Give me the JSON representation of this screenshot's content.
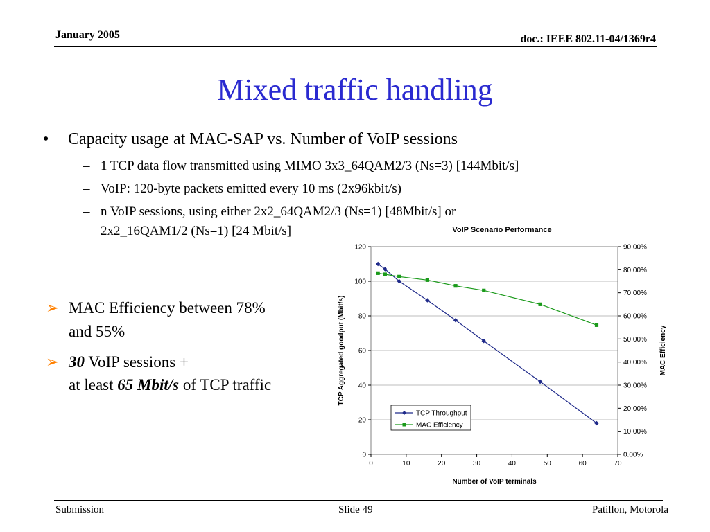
{
  "header": {
    "date": "January 2005",
    "doc": "doc.: IEEE 802.11-04/1369r4"
  },
  "title": "Mixed traffic handling",
  "bullet_main": "Capacity usage at MAC-SAP vs. Number of VoIP sessions",
  "sub_bullets": [
    "1 TCP data flow transmitted using MIMO 3x3_64QAM2/3 (Ns=3) [144Mbit/s]",
    "VoIP: 120-byte packets emitted every 10 ms (2x96kbit/s)",
    "n VoIP sessions, using either 2x2_64QAM2/3 (Ns=1) [48Mbit/s] or",
    "2x2_16QAM1/2 (Ns=1) [24 Mbit/s]"
  ],
  "arrow_bullets": {
    "first_line1": "MAC Efficiency between 78%",
    "first_line2": "and 55%",
    "second_num": "30",
    "second_rest": " VoIP sessions +",
    "third_pre": "at least ",
    "third_bold": "65 Mbit/s",
    "third_post": " of TCP traffic"
  },
  "footer": {
    "left": "Submission",
    "center": "Slide 49",
    "right": "Patillon, Motorola"
  },
  "chart_data": {
    "type": "line",
    "title": "VoIP Scenario Performance",
    "xlabel": "Number of VoIP terminals",
    "ylabel": "TCP Aggregated goodput  (Mbit/s)",
    "y2label": "MAC Efficiency",
    "xlim": [
      0,
      70
    ],
    "ylim": [
      0,
      120
    ],
    "y2lim": [
      0,
      90
    ],
    "x_ticks": [
      "0",
      "10",
      "20",
      "30",
      "40",
      "50",
      "60",
      "70"
    ],
    "y_ticks": [
      "0",
      "20",
      "40",
      "60",
      "80",
      "100",
      "120"
    ],
    "y2_ticks": [
      "0.00%",
      "10.00%",
      "20.00%",
      "30.00%",
      "40.00%",
      "50.00%",
      "60.00%",
      "70.00%",
      "80.00%",
      "90.00%"
    ],
    "legend_placement": "bottom-left",
    "series": [
      {
        "name": "TCP Throughput",
        "axis": "left",
        "color": "#1f2a8a",
        "marker": "diamond",
        "x": [
          2,
          4,
          8,
          16,
          24,
          32,
          48,
          64
        ],
        "values": [
          110,
          107,
          100,
          89,
          77.5,
          65.5,
          42,
          18
        ]
      },
      {
        "name": "MAC Efficiency",
        "axis": "right",
        "color": "#1a9a1a",
        "marker": "square",
        "x": [
          2,
          4,
          8,
          16,
          24,
          32,
          48,
          64
        ],
        "values": [
          78.5,
          78,
          77,
          75.5,
          73,
          71,
          65,
          56
        ]
      }
    ]
  }
}
